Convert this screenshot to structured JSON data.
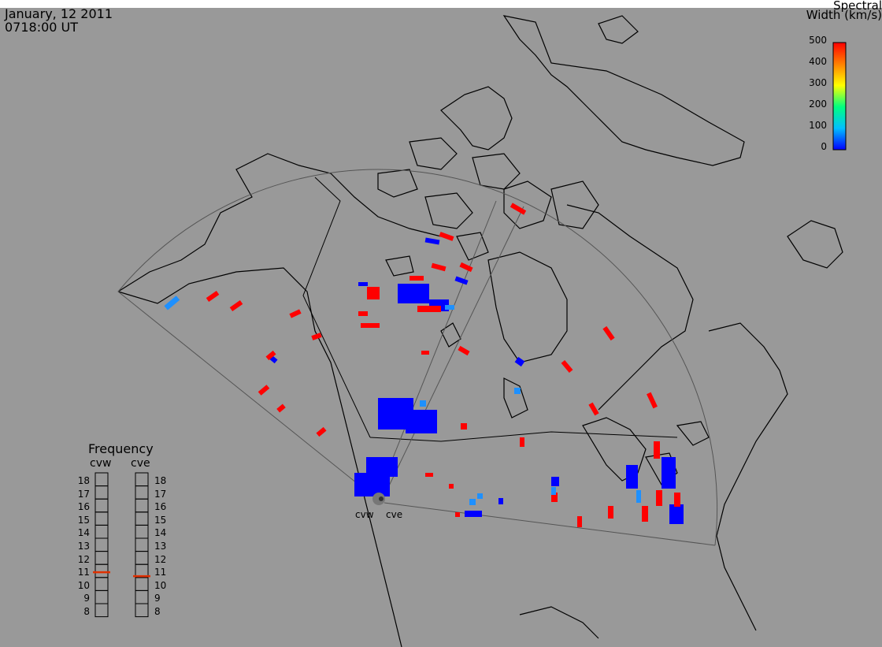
{
  "header": {
    "date": "January, 12 2011",
    "time": "0718:00 UT"
  },
  "colorbar": {
    "title_line1": "Spectral",
    "title_line2": "Width (km/s)",
    "ticks": [
      "500",
      "400",
      "300",
      "200",
      "100",
      "0"
    ],
    "colors": [
      "#0000ff",
      "#00bfff",
      "#00ff80",
      "#ffff00",
      "#ff8000",
      "#ff0000"
    ]
  },
  "frequency": {
    "title": "Frequency",
    "radars": [
      "cvw",
      "cve"
    ],
    "levels": [
      "18",
      "17",
      "16",
      "15",
      "14",
      "13",
      "12",
      "11",
      "10",
      "9",
      "8"
    ],
    "values_mhz": [
      10.9,
      10.6
    ],
    "marker_color": "#e03000"
  },
  "sites": {
    "west": "cvw",
    "east": "cve"
  },
  "colors": {
    "background": "#999999",
    "echo_red": "#ff0000",
    "echo_blue": "#0000ff",
    "echo_cyan": "#00bfff",
    "fov_outline": "#555555",
    "coast": "#000000"
  }
}
